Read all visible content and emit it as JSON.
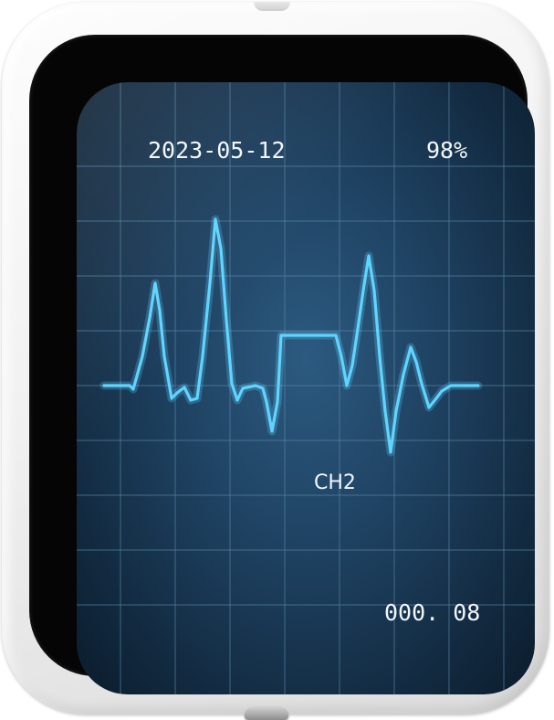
{
  "device": {
    "screen": {
      "date": "2023-05-12",
      "battery": "98%",
      "channel": "CH2",
      "reading": "000. 08",
      "waveform_color": "#5fd4ff",
      "grid_color": "#5a86a8"
    }
  },
  "icons": {
    "top_button": "power-button-icon",
    "bottom_button": "home-button-icon"
  }
}
